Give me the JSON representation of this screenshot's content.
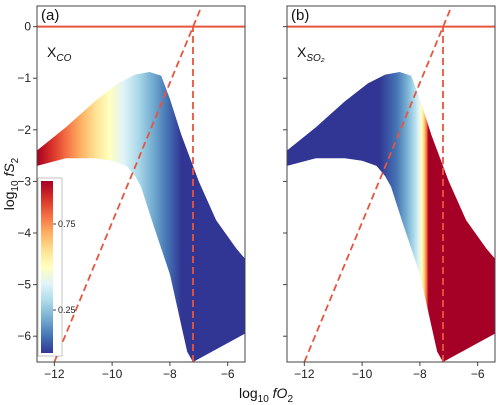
{
  "chart_data": [
    {
      "type": "heatmap",
      "panel_label": "(a)",
      "variable_label_main": "X",
      "variable_label_sub": "CO",
      "xlabel_main": "log",
      "xlabel_sub": "10",
      "xlabel_var": " fO",
      "xlabel_var_sub": "2",
      "ylabel_main": "log",
      "ylabel_sub": "10",
      "ylabel_var": " fS",
      "ylabel_var_sub": "2",
      "xlim": [
        -12.6,
        -5.4
      ],
      "ylim": [
        -6.5,
        0.4
      ],
      "xticks": [
        "−12",
        "−10",
        "−8",
        "−6"
      ],
      "xtick_values": [
        -12,
        -10,
        -8,
        -6
      ],
      "yticks": [
        "0",
        "−1",
        "−2",
        "−3",
        "−4",
        "−5",
        "−6"
      ],
      "ytick_values": [
        0,
        -1,
        -2,
        -3,
        -4,
        -5,
        -6
      ],
      "colormap": "RdYlBu_r",
      "colorbar_ticks": [
        "0.75",
        "0.25"
      ],
      "colorbar_tick_values": [
        0.75,
        0.25
      ],
      "color_direction": "high at low fO2 (left), low toward high fO2",
      "region_top_boundary": {
        "x": [
          -12.6,
          -11.6,
          -10.6,
          -9.8,
          -9.2,
          -8.7,
          -8.3,
          -8.0,
          -7.6,
          -7.0,
          -6.4,
          -5.7,
          -5.4
        ],
        "y": [
          -2.4,
          -1.95,
          -1.45,
          -1.1,
          -0.93,
          -0.88,
          -0.95,
          -1.4,
          -2.1,
          -3.0,
          -3.75,
          -4.3,
          -4.5
        ]
      },
      "region_bottom_boundary": {
        "x": [
          -12.6,
          -11.6,
          -10.6,
          -10.0,
          -9.5,
          -9.2,
          -9.0,
          -8.6,
          -8.0,
          -7.6,
          -7.4,
          -7.2
        ],
        "y": [
          -2.7,
          -2.55,
          -2.55,
          -2.6,
          -2.7,
          -2.9,
          -3.1,
          -3.8,
          -4.8,
          -5.8,
          -6.3,
          -6.5
        ]
      },
      "right_boundary": {
        "x": [
          -7.2,
          -5.4
        ],
        "y": [
          -6.5,
          -5.95
        ]
      },
      "lines": [
        {
          "style": "solid",
          "color": "#e8553e",
          "x": [
            -12.6,
            -5.4
          ],
          "y": [
            0,
            0
          ]
        },
        {
          "style": "dashed",
          "color": "#e8553e",
          "x": [
            -12.0,
            -6.9
          ],
          "y": [
            -6.5,
            0.4
          ]
        },
        {
          "style": "dashed",
          "color": "#e8553e",
          "x": [
            -7.2,
            -7.2
          ],
          "y": [
            -6.5,
            0
          ]
        }
      ]
    },
    {
      "type": "heatmap",
      "panel_label": "(b)",
      "variable_label_main": "X",
      "variable_label_sub": "SO₂",
      "xlim": [
        -12.6,
        -5.4
      ],
      "ylim": [
        -6.5,
        0.4
      ],
      "xticks": [
        "−12",
        "−10",
        "−8",
        "−6"
      ],
      "xtick_values": [
        -12,
        -10,
        -8,
        -6
      ],
      "colormap": "RdYlBu_r",
      "color_direction": "low at low fO2 (left), high at high fO2 edge",
      "region_top_boundary": {
        "x": [
          -12.6,
          -11.6,
          -10.6,
          -9.8,
          -9.2,
          -8.7,
          -8.3,
          -8.0,
          -7.6,
          -7.0,
          -6.4,
          -5.7,
          -5.4
        ],
        "y": [
          -2.4,
          -1.95,
          -1.45,
          -1.1,
          -0.93,
          -0.88,
          -0.95,
          -1.4,
          -2.1,
          -3.0,
          -3.75,
          -4.3,
          -4.5
        ]
      },
      "region_bottom_boundary": {
        "x": [
          -12.6,
          -11.6,
          -10.6,
          -10.0,
          -9.5,
          -9.2,
          -9.0,
          -8.6,
          -8.0,
          -7.6,
          -7.4,
          -7.2
        ],
        "y": [
          -2.7,
          -2.55,
          -2.55,
          -2.6,
          -2.7,
          -2.9,
          -3.1,
          -3.8,
          -4.8,
          -5.8,
          -6.3,
          -6.5
        ]
      },
      "right_boundary": {
        "x": [
          -7.2,
          -5.4
        ],
        "y": [
          -6.5,
          -5.95
        ]
      },
      "lines": [
        {
          "style": "solid",
          "color": "#e8553e",
          "x": [
            -12.6,
            -5.4
          ],
          "y": [
            0,
            0
          ]
        },
        {
          "style": "dashed",
          "color": "#e8553e",
          "x": [
            -12.0,
            -6.9
          ],
          "y": [
            -6.5,
            0.4
          ]
        },
        {
          "style": "dashed",
          "color": "#e8553e",
          "x": [
            -7.2,
            -7.2
          ],
          "y": [
            -6.5,
            0
          ]
        }
      ]
    }
  ],
  "colors": {
    "reference_line": "#e8553e",
    "axes": "#444444",
    "colormap_stops": [
      "#313695",
      "#4575b4",
      "#74add1",
      "#abd9e9",
      "#e0f3f8",
      "#ffffbf",
      "#fee090",
      "#fdae61",
      "#f46d43",
      "#d73027",
      "#a50026"
    ]
  }
}
